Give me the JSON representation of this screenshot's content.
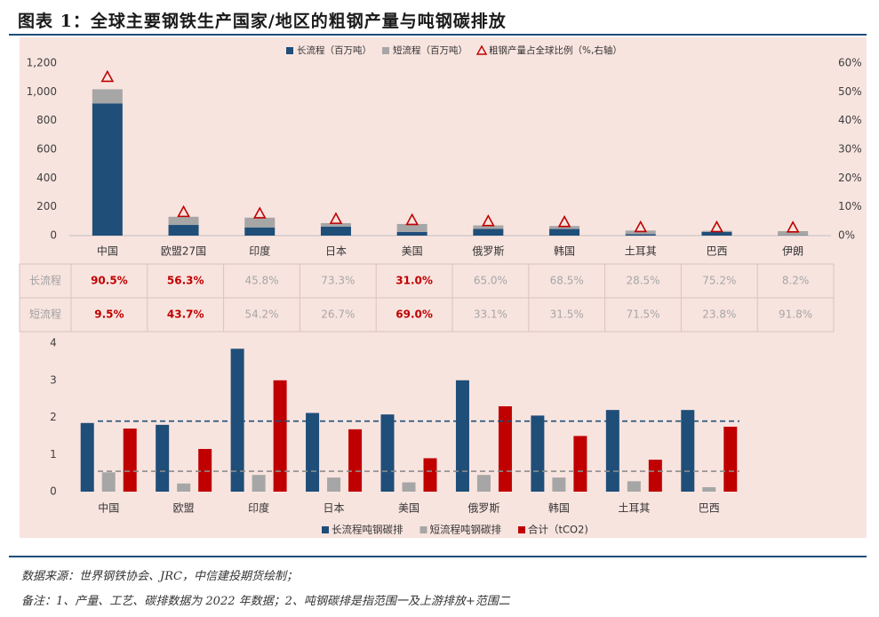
{
  "title": "图表 1：全球主要钢铁生产国家/地区的粗钢产量与吨钢碳排放",
  "chart_data": [
    {
      "type": "bar",
      "stacked": true,
      "categories": [
        "中国",
        "欧盟27国",
        "印度",
        "日本",
        "美国",
        "俄罗斯",
        "韩国",
        "土耳其",
        "巴西",
        "伊朗"
      ],
      "series": [
        {
          "name": "长流程（百万吨）",
          "color": "#1f4e79",
          "axis": "left",
          "values": [
            920,
            74,
            57,
            63,
            25,
            47,
            46,
            10,
            25,
            2
          ]
        },
        {
          "name": "短流程（百万吨）",
          "color": "#a6a6a6",
          "axis": "left",
          "values": [
            98,
            57,
            68,
            24,
            56,
            24,
            21,
            25,
            8,
            29
          ]
        },
        {
          "name": "粗钢产量占全球比例（%,右轴）",
          "color": "#c00000",
          "axis": "right",
          "type": "marker",
          "values": [
            54,
            7,
            6.5,
            4.6,
            4.2,
            3.8,
            3.5,
            1.7,
            1.7,
            1.6
          ]
        }
      ],
      "ylim": [
        0,
        1200
      ],
      "yticks": [
        "0",
        "200",
        "400",
        "600",
        "800",
        "1,000",
        "1,200"
      ],
      "y2lim": [
        0,
        60
      ],
      "y2ticks": [
        "0%",
        "10%",
        "20%",
        "30%",
        "40%",
        "50%",
        "60%"
      ],
      "legend": "top-center"
    },
    {
      "type": "table",
      "rows": [
        {
          "label": "长流程",
          "values": [
            "90.5%",
            "56.3%",
            "45.8%",
            "73.3%",
            "31.0%",
            "65.0%",
            "68.5%",
            "28.5%",
            "75.2%",
            "8.2%"
          ]
        },
        {
          "label": "短流程",
          "values": [
            "9.5%",
            "43.7%",
            "54.2%",
            "26.7%",
            "69.0%",
            "33.1%",
            "31.5%",
            "71.5%",
            "23.8%",
            "91.8%"
          ]
        }
      ],
      "highlight_columns": [
        0,
        1,
        4
      ]
    },
    {
      "type": "bar",
      "categories": [
        "中国",
        "欧盟",
        "印度",
        "日本",
        "美国",
        "俄罗斯",
        "韩国",
        "土耳其",
        "巴西"
      ],
      "series": [
        {
          "name": "长流程吨钢碳排",
          "color": "#1f4e79",
          "values": [
            1.85,
            1.8,
            3.85,
            2.12,
            2.08,
            3.0,
            2.05,
            2.2,
            2.2
          ]
        },
        {
          "name": "短流程吨钢碳排",
          "color": "#a6a6a6",
          "values": [
            0.52,
            0.22,
            0.45,
            0.38,
            0.25,
            0.45,
            0.38,
            0.28,
            0.12
          ]
        },
        {
          "name": "合计（tCO2)",
          "color": "#c00000",
          "values": [
            1.7,
            1.15,
            3.0,
            1.68,
            0.9,
            2.3,
            1.5,
            0.86,
            1.75
          ]
        }
      ],
      "reference_lines": [
        {
          "value": 1.9,
          "color": "#1f4e79"
        },
        {
          "value": 0.55,
          "color": "#8c8c8c"
        }
      ],
      "ylim": [
        0,
        4
      ],
      "yticks": [
        "0",
        "1",
        "2",
        "3",
        "4"
      ],
      "legend": "bottom-center"
    }
  ],
  "footnotes": {
    "source": "数据来源：世界钢铁协会、JRC，中信建投期货绘制；",
    "note": "备注：1、产量、工艺、碳排数据为 2022 年数据；2、吨钢碳排是指范围一及上游排放+范围二"
  }
}
